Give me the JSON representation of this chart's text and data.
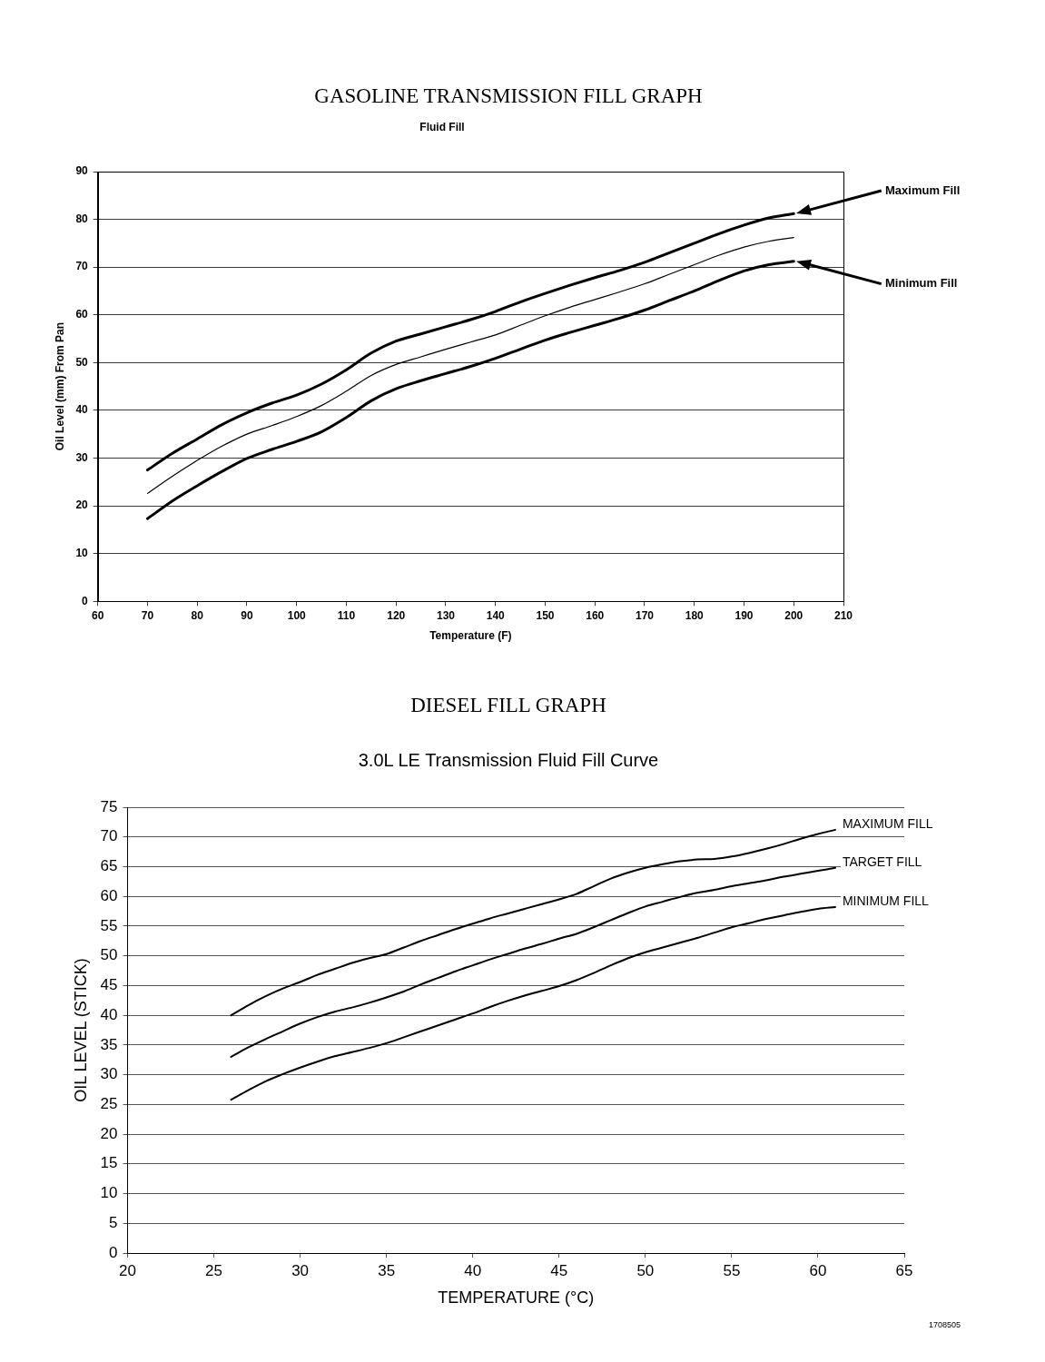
{
  "chart_data": [
    {
      "type": "line",
      "title": "GASOLINE TRANSMISSION FILL GRAPH",
      "subtitle": "Fluid Fill",
      "xlabel": "Temperature (F)",
      "ylabel": "Oil Level (mm) From Pan",
      "x": [
        70,
        75,
        80,
        85,
        90,
        95,
        100,
        105,
        110,
        115,
        120,
        125,
        130,
        135,
        140,
        145,
        150,
        155,
        160,
        165,
        170,
        175,
        180,
        185,
        190,
        195,
        200
      ],
      "series": [
        {
          "name": "Maximum Fill",
          "color": "#000000",
          "values": [
            27.5,
            31,
            34,
            37,
            39.5,
            41.5,
            43.2,
            45.5,
            48.5,
            52,
            54.5,
            56,
            57.5,
            59,
            60.7,
            62.7,
            64.5,
            66.2,
            67.8,
            69.3,
            71,
            73,
            75,
            77,
            78.8,
            80.3,
            81.2
          ]
        },
        {
          "color": "#000000",
          "values": [
            22.6,
            26.2,
            29.5,
            32.5,
            35,
            36.8,
            38.7,
            41,
            44,
            47.3,
            49.6,
            51.2,
            52.8,
            54.3,
            55.8,
            57.8,
            59.8,
            61.6,
            63.2,
            64.8,
            66.5,
            68.5,
            70.5,
            72.5,
            74.2,
            75.4,
            76.2
          ]
        },
        {
          "name": "Minimum Fill",
          "color": "#000000",
          "values": [
            17.3,
            21,
            24.2,
            27.2,
            29.9,
            31.8,
            33.5,
            35.5,
            38.5,
            42,
            44.5,
            46.2,
            47.7,
            49.2,
            50.9,
            52.8,
            54.7,
            56.3,
            57.8,
            59.3,
            61,
            63,
            65,
            67.2,
            69.2,
            70.5,
            71.2
          ]
        }
      ],
      "xlim": [
        60,
        210
      ],
      "xticks": [
        60,
        70,
        80,
        90,
        100,
        110,
        120,
        130,
        140,
        150,
        160,
        170,
        180,
        190,
        200,
        210
      ],
      "ylim": [
        0,
        90
      ],
      "yticks": [
        0,
        10,
        20,
        30,
        40,
        50,
        60,
        70,
        80,
        90
      ],
      "grid": "y"
    },
    {
      "type": "line",
      "title": "DIESEL FILL GRAPH",
      "subtitle": "3.0L LE Transmission Fluid Fill Curve",
      "xlabel": "TEMPERATURE (°C)",
      "ylabel": "OIL LEVEL (STICK)",
      "x": [
        26,
        27,
        28,
        29,
        30,
        31,
        32,
        33,
        34,
        35,
        36,
        37,
        38,
        39,
        40,
        41,
        42,
        43,
        44,
        45,
        46,
        47,
        48,
        49,
        50,
        51,
        52,
        53,
        54,
        55,
        56,
        57,
        58,
        59,
        60,
        61
      ],
      "series": [
        {
          "name": "MAXIMUM FILL",
          "color": "#000000",
          "values": [
            40,
            41.7,
            43.2,
            44.5,
            45.6,
            46.8,
            47.8,
            48.8,
            49.6,
            50.3,
            51.4,
            52.5,
            53.5,
            54.5,
            55.4,
            56.3,
            57.1,
            57.9,
            58.7,
            59.5,
            60.4,
            61.7,
            63,
            64,
            64.8,
            65.4,
            65.9,
            66.2,
            66.3,
            66.7,
            67.3,
            68,
            68.8,
            69.7,
            70.5,
            71.2
          ]
        },
        {
          "name": "TARGET FILL",
          "color": "#000000",
          "values": [
            33,
            34.6,
            36,
            37.3,
            38.6,
            39.7,
            40.6,
            41.3,
            42.1,
            43,
            44,
            45.2,
            46.3,
            47.4,
            48.4,
            49.4,
            50.3,
            51.2,
            52,
            52.9,
            53.7,
            54.8,
            56,
            57.2,
            58.3,
            59.1,
            59.9,
            60.6,
            61.1,
            61.7,
            62.2,
            62.7,
            63.3,
            63.8,
            64.3,
            64.8
          ]
        },
        {
          "name": "MINIMUM FILL",
          "color": "#000000",
          "values": [
            25.8,
            27.4,
            28.9,
            30.1,
            31.2,
            32.2,
            33.1,
            33.8,
            34.5,
            35.3,
            36.3,
            37.3,
            38.3,
            39.3,
            40.3,
            41.4,
            42.4,
            43.3,
            44.1,
            44.9,
            45.9,
            47.1,
            48.4,
            49.6,
            50.6,
            51.4,
            52.2,
            53,
            53.9,
            54.8,
            55.5,
            56.2,
            56.8,
            57.4,
            57.9,
            58.2
          ]
        }
      ],
      "xlim": [
        20,
        65
      ],
      "xticks": [
        20,
        25,
        30,
        35,
        40,
        45,
        50,
        55,
        60,
        65
      ],
      "ylim": [
        0,
        75
      ],
      "yticks": [
        0,
        5,
        10,
        15,
        20,
        25,
        30,
        35,
        40,
        45,
        50,
        55,
        60,
        65,
        70,
        75
      ],
      "grid": "y",
      "annotations": [
        "1708505"
      ]
    }
  ]
}
